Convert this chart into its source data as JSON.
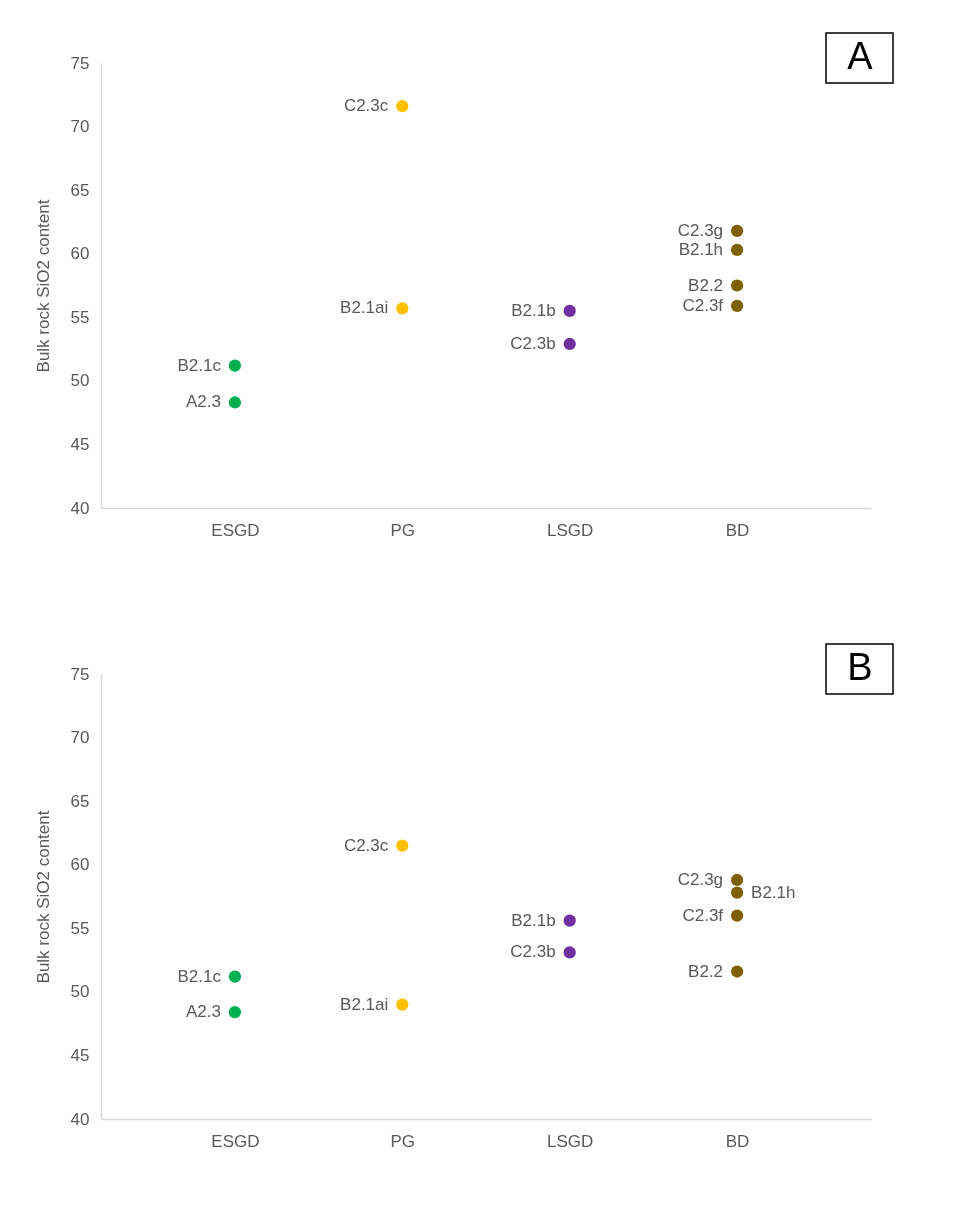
{
  "chart_data": [
    {
      "type": "scatter",
      "ylabel": "Bulk rock SiO2 content",
      "categories": [
        "ESGD",
        "PG",
        "LSGD",
        "BD"
      ],
      "ylim": [
        40,
        75
      ],
      "yticks": [
        40,
        45,
        50,
        55,
        60,
        65,
        70,
        75
      ],
      "grid": false,
      "legend": false,
      "marker": "circle",
      "series": [
        {
          "color": "#00b050",
          "x": [
            "ESGD",
            "ESGD"
          ],
          "values": [
            51.2,
            48.3
          ]
        },
        {
          "color": "#ffc000",
          "x": [
            "PG",
            "PG"
          ],
          "values": [
            71.6,
            55.7
          ]
        },
        {
          "color": "#7030a0",
          "x": [
            "LSGD",
            "LSGD"
          ],
          "values": [
            55.5,
            52.9
          ]
        },
        {
          "color": "#7f6000",
          "x": [
            "BD",
            "BD",
            "BD",
            "BD"
          ],
          "values": [
            61.8,
            60.3,
            57.5,
            55.9
          ]
        }
      ],
      "annotations": [
        "A",
        {
          "text": "B2.1c",
          "x": "ESGD",
          "y": 51.2
        },
        {
          "text": "A2.3",
          "x": "ESGD",
          "y": 48.3
        },
        {
          "text": "C2.3c",
          "x": "PG",
          "y": 71.6
        },
        {
          "text": "B2.1ai",
          "x": "PG",
          "y": 55.7
        },
        {
          "text": "B2.1b",
          "x": "LSGD",
          "y": 55.5
        },
        {
          "text": "C2.3b",
          "x": "LSGD",
          "y": 52.9
        },
        {
          "text": "C2.3g",
          "x": "BD",
          "y": 61.8
        },
        {
          "text": "B2.1h",
          "x": "BD",
          "y": 60.3
        },
        {
          "text": "B2.2",
          "x": "BD",
          "y": 57.5
        },
        {
          "text": "C2.3f",
          "x": "BD",
          "y": 55.9
        }
      ]
    },
    {
      "type": "scatter",
      "ylabel": "Bulk rock SiO2 content",
      "categories": [
        "ESGD",
        "PG",
        "LSGD",
        "BD"
      ],
      "ylim": [
        40,
        75
      ],
      "yticks": [
        40,
        45,
        50,
        55,
        60,
        65,
        70,
        75
      ],
      "grid": false,
      "legend": false,
      "marker": "circle",
      "series": [
        {
          "color": "#00b050",
          "x": [
            "ESGD",
            "ESGD"
          ],
          "values": [
            51.2,
            48.4
          ]
        },
        {
          "color": "#ffc000",
          "x": [
            "PG",
            "PG"
          ],
          "values": [
            61.5,
            49.0
          ]
        },
        {
          "color": "#7030a0",
          "x": [
            "LSGD",
            "LSGD"
          ],
          "values": [
            55.6,
            53.1
          ]
        },
        {
          "color": "#7f6000",
          "x": [
            "BD",
            "BD",
            "BD",
            "BD"
          ],
          "values": [
            58.8,
            57.8,
            56.0,
            51.6
          ]
        }
      ],
      "annotations": [
        "B",
        {
          "text": "B2.1c",
          "x": "ESGD",
          "y": 51.2
        },
        {
          "text": "A2.3",
          "x": "ESGD",
          "y": 48.4
        },
        {
          "text": "C2.3c",
          "x": "PG",
          "y": 61.5
        },
        {
          "text": "B2.1ai",
          "x": "PG",
          "y": 49.0
        },
        {
          "text": "B2.1b",
          "x": "LSGD",
          "y": 55.6
        },
        {
          "text": "C2.3b",
          "x": "LSGD",
          "y": 53.1
        },
        {
          "text": "C2.3g",
          "x": "BD",
          "y": 58.8
        },
        {
          "text": "B2.1h",
          "x": "BD",
          "y": 57.8
        },
        {
          "text": "C2.3f",
          "x": "BD",
          "y": 56.0
        },
        {
          "text": "B2.2",
          "x": "BD",
          "y": 51.6
        }
      ]
    }
  ]
}
